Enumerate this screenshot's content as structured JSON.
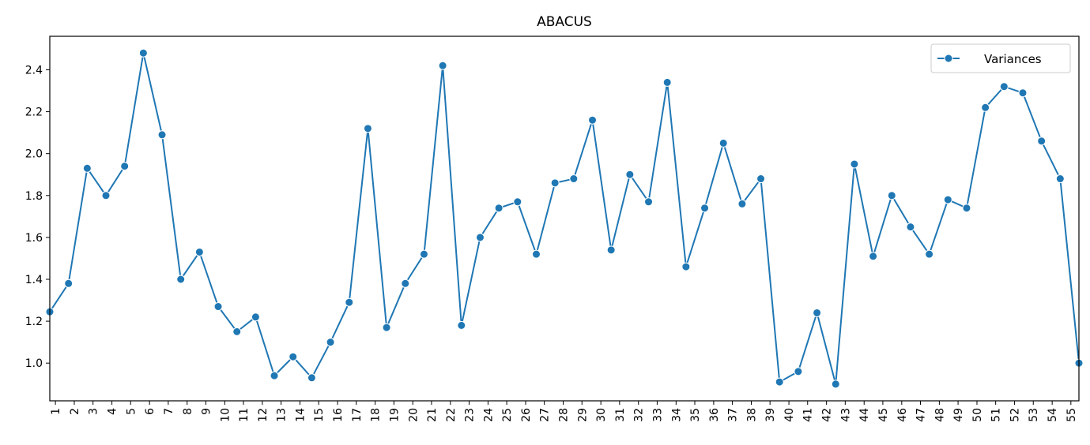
{
  "chart_data": {
    "type": "line",
    "title": "ABACUS",
    "x": [
      0,
      1,
      2,
      3,
      4,
      5,
      6,
      7,
      8,
      9,
      10,
      11,
      12,
      13,
      14,
      15,
      16,
      17,
      18,
      19,
      20,
      21,
      22,
      23,
      24,
      25,
      26,
      27,
      28,
      29,
      30,
      31,
      32,
      33,
      34,
      35,
      36,
      37,
      38,
      39,
      40,
      41,
      42,
      43,
      44,
      45,
      46,
      47,
      48,
      49,
      50,
      51,
      52,
      53,
      54,
      55
    ],
    "series": [
      {
        "name": "Variances",
        "color": "#1f77b4",
        "values": [
          1.245,
          1.38,
          1.93,
          1.8,
          1.94,
          2.48,
          2.09,
          1.4,
          1.53,
          1.27,
          1.15,
          1.22,
          0.94,
          1.03,
          0.93,
          1.1,
          1.29,
          2.12,
          1.17,
          1.38,
          1.52,
          2.42,
          1.18,
          1.6,
          1.74,
          1.77,
          1.52,
          1.86,
          1.88,
          2.16,
          1.54,
          1.9,
          1.77,
          2.34,
          1.46,
          1.74,
          2.05,
          1.76,
          1.88,
          0.91,
          0.96,
          1.24,
          0.9,
          1.95,
          1.51,
          1.8,
          1.65,
          1.52,
          1.78,
          1.74,
          2.22,
          2.32,
          2.29,
          2.06,
          1.88,
          1.0
        ]
      }
    ],
    "xlim": [
      0,
      55
    ],
    "ylim": [
      0.82,
      2.56
    ],
    "xticks": [
      {
        "value": 0.3,
        "label": "1"
      },
      {
        "value": 1.31,
        "label": "2"
      },
      {
        "value": 2.31,
        "label": "3"
      },
      {
        "value": 3.32,
        "label": "4"
      },
      {
        "value": 4.32,
        "label": "5"
      },
      {
        "value": 5.33,
        "label": "6"
      },
      {
        "value": 6.33,
        "label": "7"
      },
      {
        "value": 7.34,
        "label": "8"
      },
      {
        "value": 8.34,
        "label": "9"
      },
      {
        "value": 9.35,
        "label": "10"
      },
      {
        "value": 10.35,
        "label": "11"
      },
      {
        "value": 11.36,
        "label": "12"
      },
      {
        "value": 12.36,
        "label": "13"
      },
      {
        "value": 13.37,
        "label": "14"
      },
      {
        "value": 14.37,
        "label": "15"
      },
      {
        "value": 15.38,
        "label": "16"
      },
      {
        "value": 16.38,
        "label": "17"
      },
      {
        "value": 17.39,
        "label": "18"
      },
      {
        "value": 18.39,
        "label": "19"
      },
      {
        "value": 19.4,
        "label": "20"
      },
      {
        "value": 20.4,
        "label": "21"
      },
      {
        "value": 21.41,
        "label": "22"
      },
      {
        "value": 22.41,
        "label": "23"
      },
      {
        "value": 23.42,
        "label": "24"
      },
      {
        "value": 24.42,
        "label": "25"
      },
      {
        "value": 25.43,
        "label": "26"
      },
      {
        "value": 26.43,
        "label": "27"
      },
      {
        "value": 27.44,
        "label": "28"
      },
      {
        "value": 28.44,
        "label": "29"
      },
      {
        "value": 29.45,
        "label": "30"
      },
      {
        "value": 30.45,
        "label": "31"
      },
      {
        "value": 31.46,
        "label": "32"
      },
      {
        "value": 32.46,
        "label": "33"
      },
      {
        "value": 33.47,
        "label": "34"
      },
      {
        "value": 34.47,
        "label": "35"
      },
      {
        "value": 35.48,
        "label": "36"
      },
      {
        "value": 36.48,
        "label": "37"
      },
      {
        "value": 37.49,
        "label": "38"
      },
      {
        "value": 38.49,
        "label": "39"
      },
      {
        "value": 39.5,
        "label": "40"
      },
      {
        "value": 40.5,
        "label": "41"
      },
      {
        "value": 41.51,
        "label": "42"
      },
      {
        "value": 42.51,
        "label": "43"
      },
      {
        "value": 43.52,
        "label": "44"
      },
      {
        "value": 44.52,
        "label": "45"
      },
      {
        "value": 45.53,
        "label": "46"
      },
      {
        "value": 46.53,
        "label": "47"
      },
      {
        "value": 47.54,
        "label": "48"
      },
      {
        "value": 48.54,
        "label": "49"
      },
      {
        "value": 49.55,
        "label": "50"
      },
      {
        "value": 50.55,
        "label": "51"
      },
      {
        "value": 51.56,
        "label": "52"
      },
      {
        "value": 52.56,
        "label": "53"
      },
      {
        "value": 53.57,
        "label": "54"
      },
      {
        "value": 54.57,
        "label": "55"
      }
    ],
    "yticks": [
      {
        "value": 1.0,
        "label": "1.0"
      },
      {
        "value": 1.2,
        "label": "1.2"
      },
      {
        "value": 1.4,
        "label": "1.4"
      },
      {
        "value": 1.6,
        "label": "1.6"
      },
      {
        "value": 1.8,
        "label": "1.8"
      },
      {
        "value": 2.0,
        "label": "2.0"
      },
      {
        "value": 2.2,
        "label": "2.2"
      },
      {
        "value": 2.4,
        "label": "2.4"
      }
    ],
    "grid": false,
    "legend": "upper right"
  }
}
